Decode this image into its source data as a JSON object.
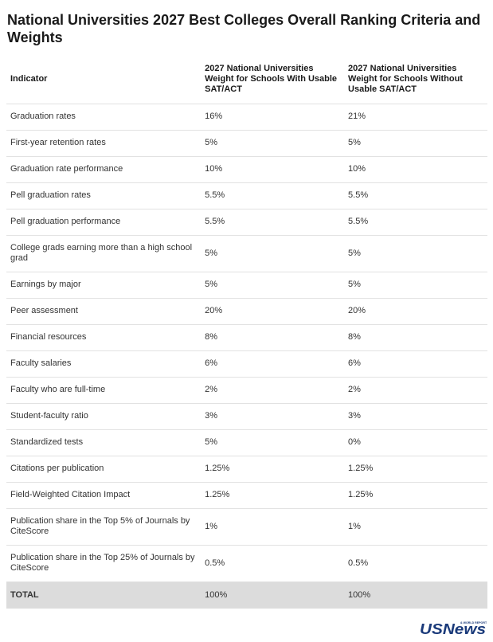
{
  "title": "National Universities 2027 Best Colleges Overall Ranking Criteria and Weights",
  "table": {
    "headers": [
      "Indicator",
      "2027 National Universities Weight for Schools With Usable SAT/ACT",
      "2027 National Universities Weight for Schools Without Usable SAT/ACT"
    ],
    "rows": [
      {
        "indicator": "Graduation rates",
        "with_sat": "16%",
        "without_sat": "21%"
      },
      {
        "indicator": "First-year retention rates",
        "with_sat": "5%",
        "without_sat": "5%"
      },
      {
        "indicator": "Graduation rate performance",
        "with_sat": "10%",
        "without_sat": "10%"
      },
      {
        "indicator": "Pell graduation rates",
        "with_sat": "5.5%",
        "without_sat": "5.5%"
      },
      {
        "indicator": "Pell graduation performance",
        "with_sat": "5.5%",
        "without_sat": "5.5%"
      },
      {
        "indicator": "College grads earning more than a high school grad",
        "with_sat": "5%",
        "without_sat": "5%"
      },
      {
        "indicator": "Earnings by major",
        "with_sat": "5%",
        "without_sat": "5%"
      },
      {
        "indicator": "Peer assessment",
        "with_sat": "20%",
        "without_sat": "20%"
      },
      {
        "indicator": "Financial resources",
        "with_sat": "8%",
        "without_sat": "8%"
      },
      {
        "indicator": "Faculty salaries",
        "with_sat": "6%",
        "without_sat": "6%"
      },
      {
        "indicator": "Faculty who are full-time",
        "with_sat": "2%",
        "without_sat": "2%"
      },
      {
        "indicator": "Student-faculty ratio",
        "with_sat": "3%",
        "without_sat": "3%"
      },
      {
        "indicator": "Standardized tests",
        "with_sat": "5%",
        "without_sat": "0%"
      },
      {
        "indicator": "Citations per publication",
        "with_sat": "1.25%",
        "without_sat": "1.25%"
      },
      {
        "indicator": "Field-Weighted Citation Impact",
        "with_sat": "1.25%",
        "without_sat": "1.25%"
      },
      {
        "indicator": "Publication share in the Top 5% of Journals by CiteScore",
        "with_sat": "1%",
        "without_sat": "1%"
      },
      {
        "indicator": "Publication share in the Top 25% of Journals by CiteScore",
        "with_sat": "0.5%",
        "without_sat": "0.5%"
      }
    ],
    "total": {
      "label": "TOTAL",
      "with_sat": "100%",
      "without_sat": "100%"
    }
  },
  "logo": {
    "text": "USNews",
    "small_text": "& WORLD REPORT",
    "color": "#1a3a7a"
  }
}
